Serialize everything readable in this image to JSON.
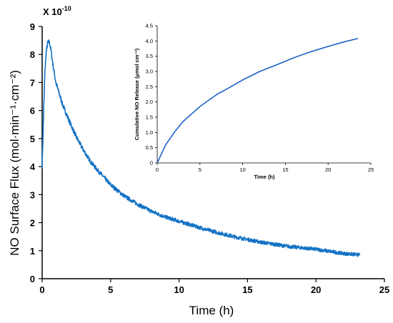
{
  "chart_data": [
    {
      "type": "line",
      "multiplier_label": "X 10",
      "multiplier_exponent": "-10",
      "xlabel": "Time (h)",
      "ylabel": "NO Surface Flux (mol·min⁻¹·cm⁻²)",
      "xlim": [
        0,
        25
      ],
      "ylim": [
        0,
        9
      ],
      "x_ticks": [
        "0",
        "5",
        "10",
        "15",
        "20",
        "25"
      ],
      "y_ticks": [
        "0",
        "1",
        "2",
        "3",
        "4",
        "5",
        "6",
        "7",
        "8",
        "9"
      ],
      "line_color": "#1372c4",
      "series": [
        {
          "x": [
            0,
            0.1,
            0.2,
            0.3,
            0.4,
            0.5,
            0.6,
            0.8,
            1.0,
            1.25,
            1.5,
            2,
            2.5,
            3,
            3.5,
            4,
            5,
            6,
            7,
            8,
            9,
            10,
            12,
            14,
            16,
            18,
            20,
            22,
            23.2
          ],
          "y": [
            4.0,
            5.8,
            7.4,
            8.1,
            8.4,
            8.45,
            8.3,
            7.6,
            7.0,
            6.6,
            6.2,
            5.6,
            5.05,
            4.6,
            4.2,
            3.9,
            3.35,
            2.95,
            2.65,
            2.4,
            2.2,
            2.05,
            1.75,
            1.5,
            1.3,
            1.15,
            1.05,
            0.9,
            0.85
          ]
        }
      ]
    },
    {
      "type": "line",
      "xlabel": "Time (h)",
      "ylabel": "Cumulative NO Release (μmol cm⁻²)",
      "xlim": [
        0,
        25
      ],
      "ylim": [
        0,
        4.5
      ],
      "x_ticks": [
        "0",
        "5",
        "10",
        "15",
        "20",
        "25"
      ],
      "y_ticks": [
        "0",
        "0.5",
        "1.0",
        "1.5",
        "2.0",
        "2.5",
        "3.0",
        "3.5",
        "4.0",
        "4.5"
      ],
      "line_color": "#1b63c8",
      "series": [
        {
          "x": [
            0,
            0.5,
            1,
            2,
            3,
            4,
            5,
            6,
            7,
            8,
            10,
            12,
            14,
            16,
            18,
            20,
            22,
            23.5
          ],
          "y": [
            0,
            0.3,
            0.6,
            1.0,
            1.35,
            1.6,
            1.85,
            2.05,
            2.25,
            2.4,
            2.72,
            3.0,
            3.22,
            3.45,
            3.65,
            3.82,
            3.98,
            4.08
          ]
        }
      ]
    }
  ]
}
